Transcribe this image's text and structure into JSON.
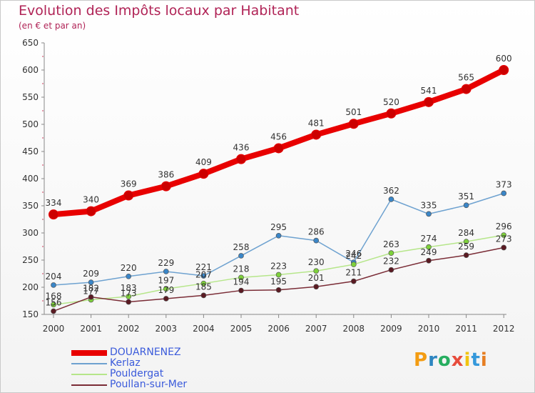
{
  "chart_data": {
    "type": "line",
    "title": "Evolution des Impôts locaux par Habitant",
    "subtitle": "(en € et par an)",
    "xlabel": "",
    "ylabel": "",
    "ylim": [
      150,
      650
    ],
    "yticks": [
      150,
      200,
      250,
      300,
      350,
      400,
      450,
      500,
      550,
      600,
      650
    ],
    "x": [
      "2000",
      "2001",
      "2002",
      "2003",
      "2004",
      "2005",
      "2006",
      "2007",
      "2008",
      "2009",
      "2010",
      "2011",
      "2012"
    ],
    "grid": false,
    "legend_position": "bottom-left",
    "series": [
      {
        "name": "DOUARNENEZ",
        "color": "#e80000",
        "point_color": "#cc0000",
        "emphasis": true,
        "values": [
          334,
          340,
          369,
          386,
          409,
          436,
          456,
          481,
          501,
          520,
          541,
          565,
          600
        ]
      },
      {
        "name": "Kerlaz",
        "color": "#6ea2d0",
        "point_color": "#3a86c8",
        "values": [
          204,
          209,
          220,
          229,
          221,
          258,
          295,
          286,
          246,
          362,
          335,
          351,
          373
        ]
      },
      {
        "name": "Pouldergat",
        "color": "#b6e68a",
        "point_color": "#7ed13b",
        "values": [
          168,
          177,
          183,
          197,
          207,
          218,
          223,
          230,
          242,
          263,
          274,
          284,
          296
        ]
      },
      {
        "name": "Poullan-sur-Mer",
        "color": "#7a2c36",
        "point_color": "#5a1a22",
        "values": [
          156,
          182,
          173,
          179,
          185,
          194,
          195,
          201,
          211,
          232,
          249,
          259,
          273
        ]
      }
    ]
  },
  "brand": {
    "name": "Proxiti",
    "letters": [
      "P",
      "r",
      "o",
      "x",
      "i",
      "t",
      "i"
    ],
    "colors": [
      "#f39c12",
      "#2e86c1",
      "#27ae60",
      "#e74c3c",
      "#f1c40f",
      "#3498db",
      "#e67e22"
    ]
  }
}
